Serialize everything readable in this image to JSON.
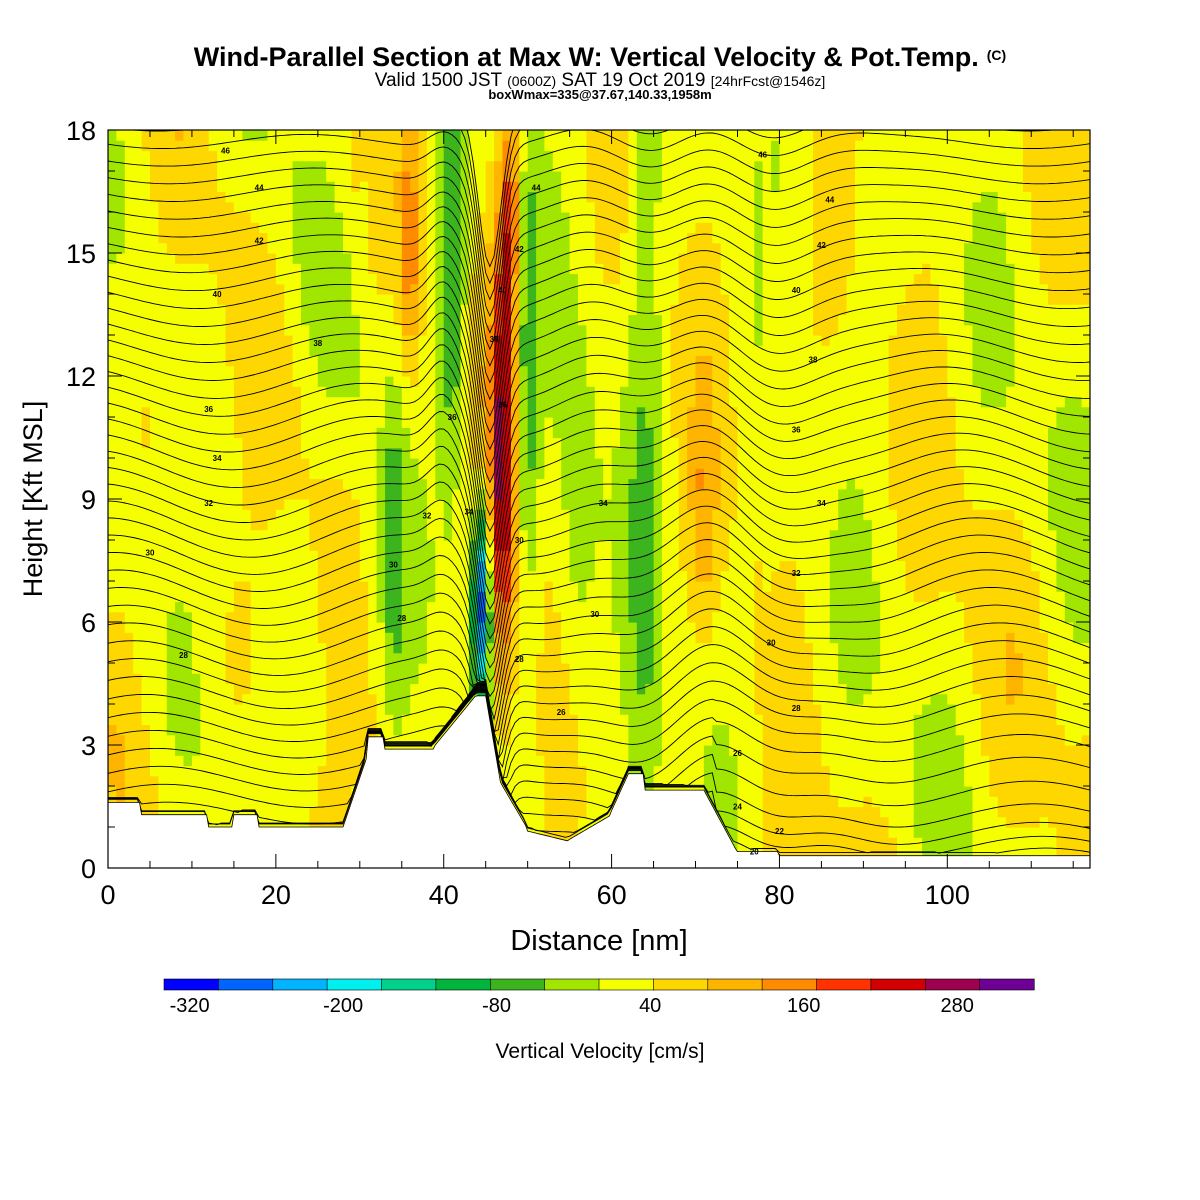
{
  "header": {
    "title": "Wind-Parallel Section at Max W: Vertical Velocity & Pot.Temp.",
    "copyright": "(C)",
    "subtitle_a": "Valid 1500 JST",
    "subtitle_b": "(0600Z)",
    "subtitle_c": "SAT 19 Oct 2019",
    "subtitle_d": "[24hrFcst@1546z]",
    "info": "boxWmax=335@37.67,140.33,1958m"
  },
  "chart_data": {
    "type": "heatmap",
    "title": "Wind-Parallel Section at Max W: Vertical Velocity & Pot.Temp.",
    "xlabel": "Distance [nm]",
    "ylabel": "Height [Kft MSL]",
    "xlim": [
      0,
      117
    ],
    "ylim": [
      0,
      18
    ],
    "xticks": [
      0,
      20,
      40,
      60,
      80,
      100
    ],
    "yticks": [
      0,
      3,
      6,
      9,
      12,
      15,
      18
    ],
    "colorbar": {
      "label": "Vertical Velocity [cm/s]",
      "bounds": [
        -340,
        340
      ],
      "ticks": [
        -320,
        -200,
        -80,
        40,
        160,
        280
      ],
      "colors": [
        "#0000ff",
        "#0064ff",
        "#00b4ff",
        "#00f0f0",
        "#00d28c",
        "#00b43c",
        "#3cb41e",
        "#a0e600",
        "#f5ff00",
        "#ffd700",
        "#ffb400",
        "#ff8c00",
        "#ff3200",
        "#d20000",
        "#a00050",
        "#6e0096"
      ]
    },
    "contour_labels": [
      {
        "x": 14,
        "y": 17.5,
        "text": "46"
      },
      {
        "x": 18,
        "y": 16.6,
        "text": "44"
      },
      {
        "x": 18,
        "y": 15.3,
        "text": "42"
      },
      {
        "x": 13,
        "y": 14.0,
        "text": "40"
      },
      {
        "x": 25,
        "y": 12.8,
        "text": "38"
      },
      {
        "x": 12,
        "y": 11.2,
        "text": "36"
      },
      {
        "x": 13,
        "y": 10.0,
        "text": "34"
      },
      {
        "x": 12,
        "y": 8.9,
        "text": "32"
      },
      {
        "x": 5,
        "y": 7.7,
        "text": "30"
      },
      {
        "x": 9,
        "y": 5.2,
        "text": "28"
      },
      {
        "x": 34,
        "y": 7.4,
        "text": "30"
      },
      {
        "x": 35,
        "y": 6.1,
        "text": "28"
      },
      {
        "x": 38,
        "y": 8.6,
        "text": "32"
      },
      {
        "x": 41,
        "y": 11.0,
        "text": "36"
      },
      {
        "x": 43,
        "y": 8.7,
        "text": "34"
      },
      {
        "x": 46,
        "y": 12.9,
        "text": "38"
      },
      {
        "x": 47,
        "y": 11.3,
        "text": "36"
      },
      {
        "x": 47,
        "y": 14.1,
        "text": "40"
      },
      {
        "x": 49,
        "y": 15.1,
        "text": "42"
      },
      {
        "x": 51,
        "y": 16.6,
        "text": "44"
      },
      {
        "x": 49,
        "y": 8.0,
        "text": "30"
      },
      {
        "x": 49,
        "y": 5.1,
        "text": "28"
      },
      {
        "x": 54,
        "y": 3.8,
        "text": "26"
      },
      {
        "x": 59,
        "y": 8.9,
        "text": "34"
      },
      {
        "x": 58,
        "y": 6.2,
        "text": "30"
      },
      {
        "x": 78,
        "y": 17.4,
        "text": "46"
      },
      {
        "x": 86,
        "y": 16.3,
        "text": "44"
      },
      {
        "x": 85,
        "y": 15.2,
        "text": "42"
      },
      {
        "x": 82,
        "y": 14.1,
        "text": "40"
      },
      {
        "x": 84,
        "y": 12.4,
        "text": "38"
      },
      {
        "x": 82,
        "y": 10.7,
        "text": "36"
      },
      {
        "x": 85,
        "y": 8.9,
        "text": "34"
      },
      {
        "x": 82,
        "y": 7.2,
        "text": "32"
      },
      {
        "x": 79,
        "y": 5.5,
        "text": "30"
      },
      {
        "x": 82,
        "y": 3.9,
        "text": "28"
      },
      {
        "x": 75,
        "y": 2.8,
        "text": "26"
      },
      {
        "x": 75,
        "y": 1.5,
        "text": "24"
      },
      {
        "x": 80,
        "y": 0.9,
        "text": "22"
      },
      {
        "x": 77,
        "y": 0.4,
        "text": "20"
      }
    ]
  }
}
